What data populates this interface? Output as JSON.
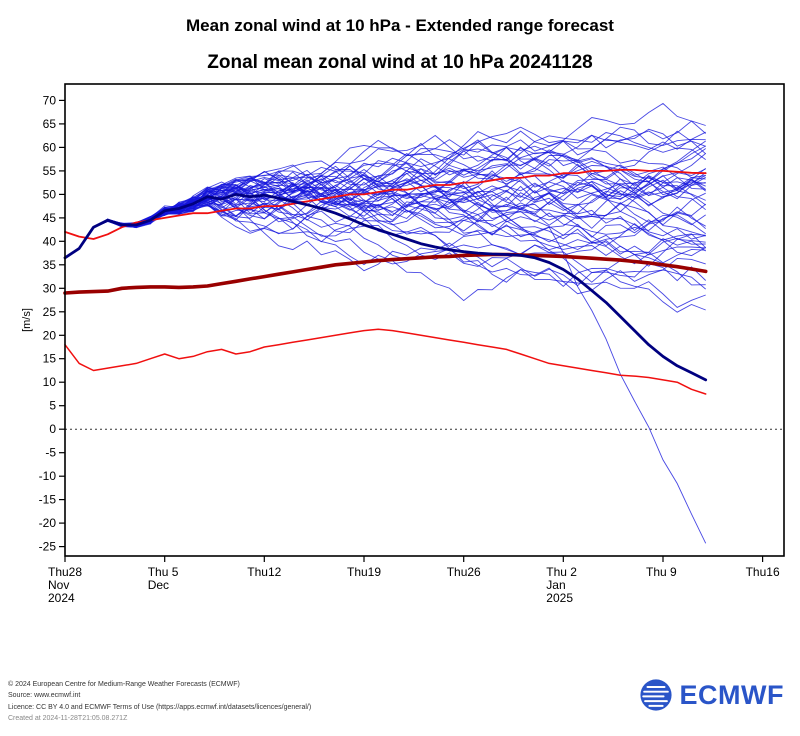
{
  "page": {
    "title": "Mean zonal wind at 10 hPa - Extended range forecast"
  },
  "chart_data": {
    "type": "line",
    "title": "Zonal mean zonal wind at 10 hPa 20241128",
    "ylabel": "[m/s]",
    "ylim": [
      -27,
      73.5
    ],
    "xlim": [
      0,
      50.5
    ],
    "yticks": [
      -25,
      -20,
      -15,
      -10,
      -5,
      0,
      5,
      10,
      15,
      20,
      25,
      30,
      35,
      40,
      45,
      50,
      55,
      60,
      65,
      70
    ],
    "zero_line": 0,
    "x_unit": "days since 2024-11-28",
    "xticks": {
      "days": [
        0,
        7,
        14,
        21,
        28,
        35,
        42,
        49
      ],
      "labels": [
        [
          "Thu28",
          "Nov",
          "2024"
        ],
        [
          "Thu 5",
          "Dec"
        ],
        [
          "Thu12"
        ],
        [
          "Thu19"
        ],
        [
          "Thu26"
        ],
        [
          "Thu 2",
          "Jan",
          "2025"
        ],
        [
          "Thu 9"
        ],
        [
          "Thu16"
        ]
      ]
    },
    "days": [
      0,
      1,
      2,
      3,
      4,
      5,
      6,
      7,
      8,
      9,
      10,
      11,
      12,
      13,
      14,
      15,
      16,
      17,
      18,
      19,
      20,
      21,
      22,
      23,
      24,
      25,
      26,
      27,
      28,
      29,
      30,
      31,
      32,
      33,
      34,
      35,
      36,
      37,
      38,
      39,
      40,
      41,
      42,
      43,
      44,
      45
    ],
    "series": [
      {
        "name": "m_climate_upper",
        "color": "#f01010",
        "width": 1.8,
        "values": [
          42,
          41,
          40.5,
          41.5,
          43,
          44,
          44.5,
          45,
          45.5,
          46,
          46,
          46.5,
          47,
          47,
          47.5,
          47.5,
          48,
          48.5,
          49,
          49.5,
          50,
          50,
          50.5,
          51,
          51,
          51.5,
          52,
          52,
          52.5,
          52.5,
          53,
          53.5,
          53.5,
          54,
          54,
          54.5,
          54.5,
          55,
          55,
          55.2,
          55.2,
          55,
          55,
          54.8,
          54.6,
          54.5
        ]
      },
      {
        "name": "m_climate_lower",
        "color": "#f01010",
        "width": 1.5,
        "values": [
          18,
          14,
          12.5,
          13,
          13.5,
          14,
          15,
          16,
          15,
          15.5,
          16.5,
          17,
          16,
          16.5,
          17.5,
          18,
          18.5,
          19,
          19.5,
          20,
          20.5,
          21,
          21.3,
          21,
          20.5,
          20,
          19.5,
          19,
          18.5,
          18,
          17.5,
          17,
          16,
          15,
          14,
          13.5,
          13,
          12.5,
          12,
          11.5,
          11.3,
          11,
          10.5,
          10,
          8.5,
          7.5
        ]
      },
      {
        "name": "m_climate_mean",
        "color": "#990000",
        "width": 3.6,
        "values": [
          29,
          29.2,
          29.3,
          29.4,
          30,
          30.2,
          30.3,
          30.3,
          30.2,
          30.3,
          30.5,
          31,
          31.5,
          32,
          32.5,
          33,
          33.5,
          34,
          34.5,
          35,
          35.3,
          35.6,
          35.9,
          36.1,
          36.3,
          36.5,
          36.7,
          36.8,
          37,
          37.1,
          37.2,
          37.2,
          37.1,
          37,
          36.9,
          36.8,
          36.6,
          36.4,
          36.2,
          36,
          35.7,
          35.4,
          35,
          34.6,
          34.1,
          33.6
        ]
      },
      {
        "name": "analysis_and_control",
        "color": "#000080",
        "width": 2.8,
        "values": [
          36.5,
          38.5,
          43,
          44.5,
          43.5,
          43.5,
          44.5,
          46.5,
          47,
          48,
          49.5,
          49,
          50,
          49.5,
          49.8,
          49.2,
          48.5,
          47.8,
          47,
          46,
          44.8,
          43.5,
          42.5,
          41.5,
          40.5,
          39.5,
          38.8,
          38.2,
          37.8,
          37.5,
          37.3,
          37.2,
          37,
          36.5,
          35.5,
          34,
          32,
          29.5,
          27,
          24,
          21,
          18,
          15.5,
          13.5,
          12,
          10.5
        ]
      }
    ],
    "ensemble": {
      "name": "ensemble_members",
      "color": "#1414dd",
      "width": 0.9,
      "opacity": 0.78,
      "count": 50,
      "tight_until_day": 10,
      "step_sigma": 3.0,
      "envelope_days": [
        10,
        14,
        18,
        22,
        26,
        30,
        34,
        38,
        42,
        45
      ],
      "envelope_low": [
        44,
        40,
        33,
        28,
        24,
        20,
        16,
        12,
        4,
        -8
      ],
      "envelope_high": [
        52,
        55,
        59,
        62,
        64,
        66,
        68,
        70,
        70,
        67
      ],
      "outlier": {
        "member": 0,
        "start_day": 34,
        "end_value": -24.5
      }
    },
    "legend_position": "none",
    "grid": false
  },
  "footer": {
    "lines": [
      "© 2024 European Centre for Medium-Range Weather Forecasts (ECMWF)",
      "Source: www.ecmwf.int",
      "Licence: CC BY 4.0 and ECMWF Terms of Use (https://apps.ecmwf.int/datasets/licences/general/)",
      "Created at 2024-11-28T21:05.08.271Z"
    ]
  },
  "logo": {
    "text": "ECMWF",
    "color": "#2a55c8"
  }
}
